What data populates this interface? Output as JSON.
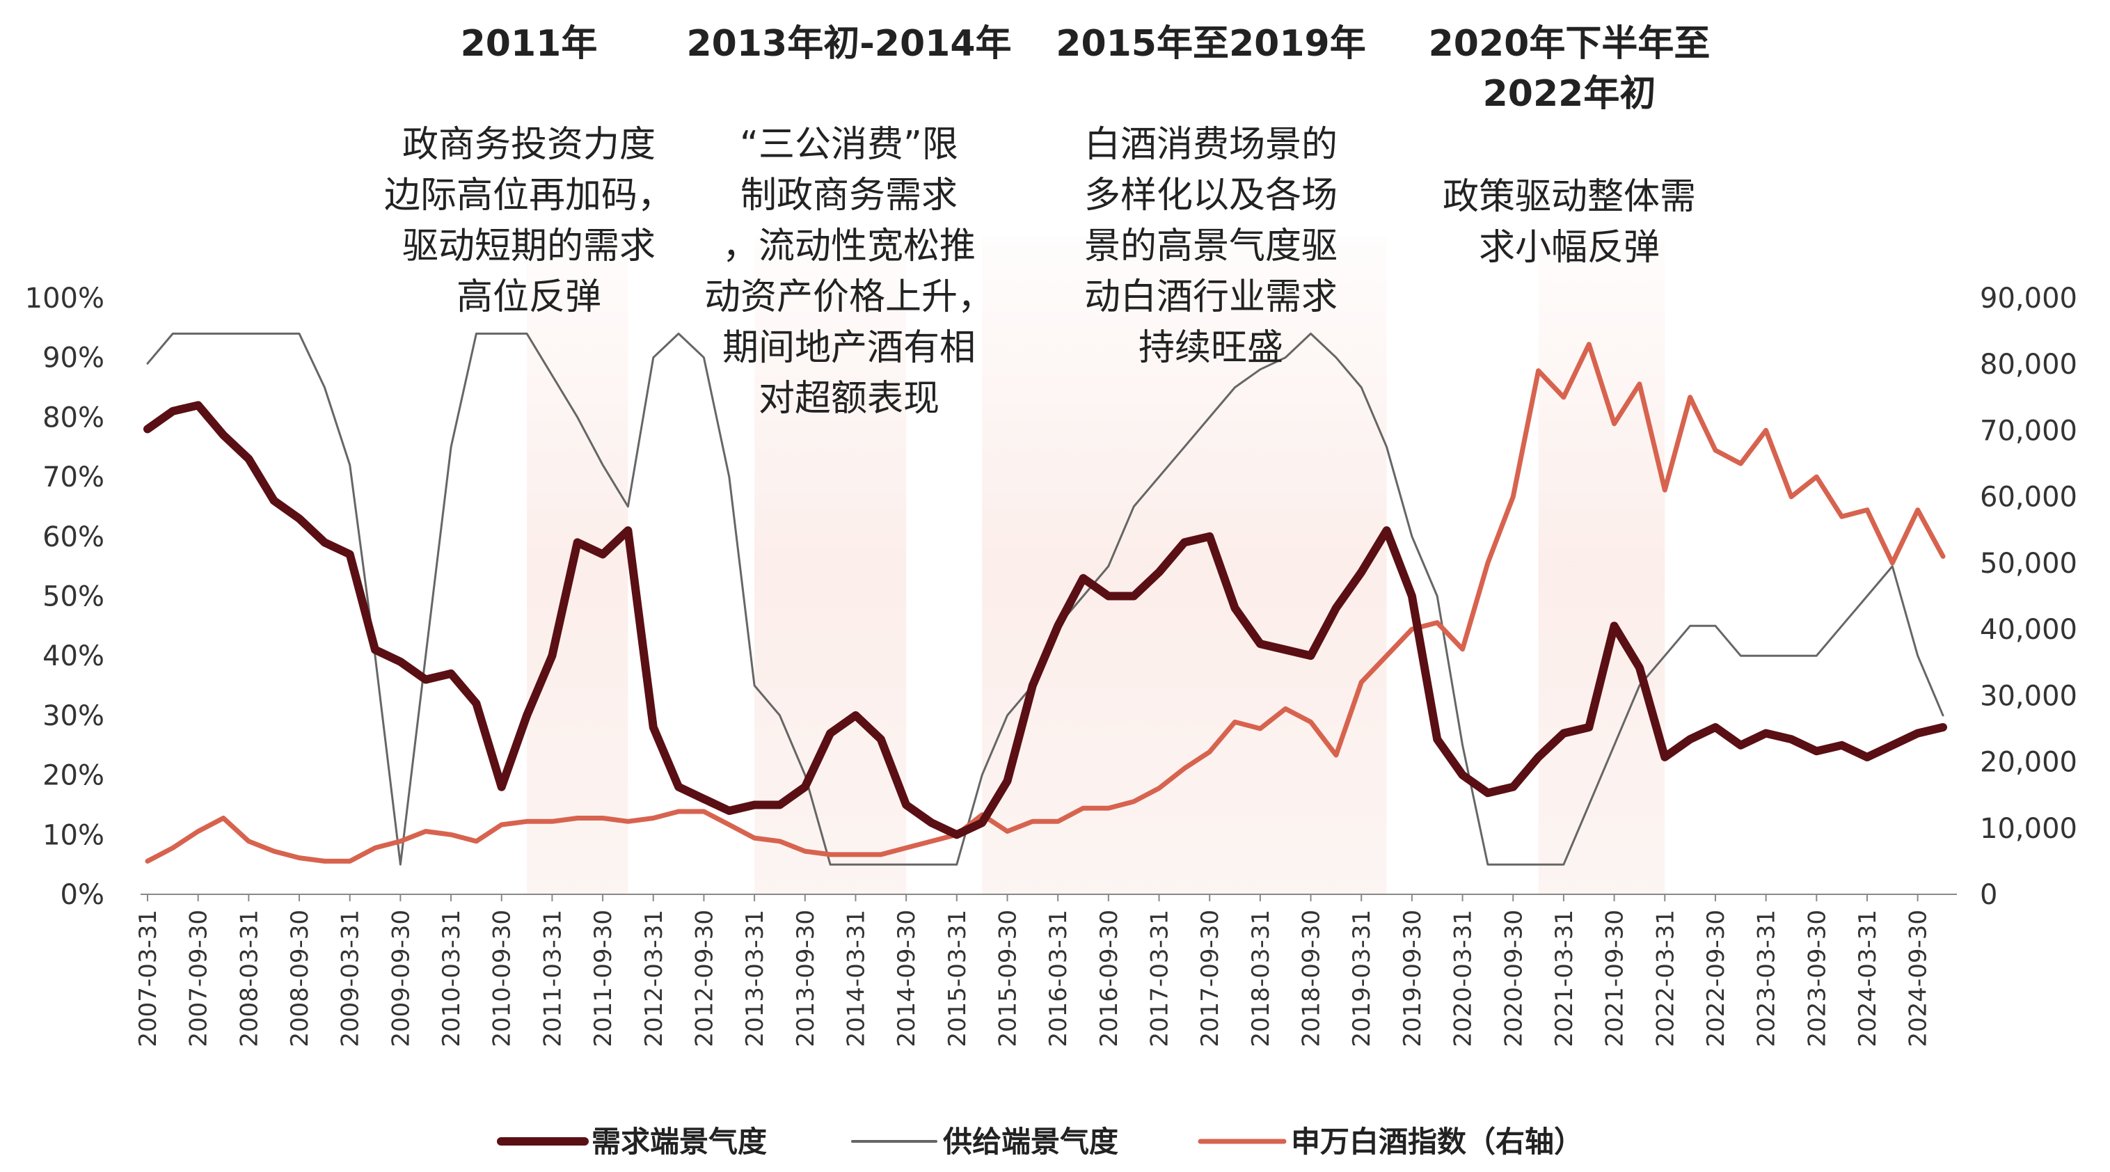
{
  "chart_data": {
    "type": "line",
    "title": "",
    "x": [
      "2007-03-31",
      "2007-06-30",
      "2007-09-30",
      "2007-12-31",
      "2008-03-31",
      "2008-06-30",
      "2008-09-30",
      "2008-12-31",
      "2009-03-31",
      "2009-06-30",
      "2009-09-30",
      "2009-12-31",
      "2010-03-31",
      "2010-06-30",
      "2010-09-30",
      "2010-12-31",
      "2011-03-31",
      "2011-06-30",
      "2011-09-30",
      "2011-12-31",
      "2012-03-31",
      "2012-06-30",
      "2012-09-30",
      "2012-12-31",
      "2013-03-31",
      "2013-06-30",
      "2013-09-30",
      "2013-12-31",
      "2014-03-31",
      "2014-06-30",
      "2014-09-30",
      "2014-12-31",
      "2015-03-31",
      "2015-06-30",
      "2015-09-30",
      "2015-12-31",
      "2016-03-31",
      "2016-06-30",
      "2016-09-30",
      "2016-12-31",
      "2017-03-31",
      "2017-06-30",
      "2017-09-30",
      "2017-12-31",
      "2018-03-31",
      "2018-06-30",
      "2018-09-30",
      "2018-12-31",
      "2019-03-31",
      "2019-06-30",
      "2019-09-30",
      "2019-12-31",
      "2020-03-31",
      "2020-06-30",
      "2020-09-30",
      "2020-12-31",
      "2021-03-31",
      "2021-06-30",
      "2021-09-30",
      "2021-12-31",
      "2022-03-31",
      "2022-06-30",
      "2022-09-30",
      "2022-12-31",
      "2023-03-31",
      "2023-06-30",
      "2023-09-30",
      "2023-12-31",
      "2024-03-31",
      "2024-06-30",
      "2024-09-30",
      "2024-12-31"
    ],
    "x_tick_labels": [
      "2007-03-31",
      "2007-09-30",
      "2008-03-31",
      "2008-09-30",
      "2009-03-31",
      "2009-09-30",
      "2010-03-31",
      "2010-09-30",
      "2011-03-31",
      "2011-09-30",
      "2012-03-31",
      "2012-09-30",
      "2013-03-31",
      "2013-09-30",
      "2014-03-31",
      "2014-09-30",
      "2015-03-31",
      "2015-09-30",
      "2016-03-31",
      "2016-09-30",
      "2017-03-31",
      "2017-09-30",
      "2018-03-31",
      "2018-09-30",
      "2019-03-31",
      "2019-09-30",
      "2020-03-31",
      "2020-09-30",
      "2021-03-31",
      "2021-09-30",
      "2022-03-31",
      "2022-09-30",
      "2023-03-31",
      "2023-09-30",
      "2024-03-31",
      "2024-09-30"
    ],
    "y_left_ticks": [
      "0%",
      "10%",
      "20%",
      "30%",
      "40%",
      "50%",
      "60%",
      "70%",
      "80%",
      "90%",
      "100%"
    ],
    "y_right_ticks": [
      "0",
      "10,000",
      "20,000",
      "30,000",
      "40,000",
      "50,000",
      "60,000",
      "70,000",
      "80,000",
      "90,000"
    ],
    "ylim_left": [
      0,
      100
    ],
    "ylim_right": [
      0,
      90000
    ],
    "shaded_periods": [
      [
        "2010-12-31",
        "2011-12-31"
      ],
      [
        "2013-03-31",
        "2014-09-30"
      ],
      [
        "2015-06-30",
        "2019-06-30"
      ],
      [
        "2020-12-31",
        "2022-03-31"
      ]
    ],
    "series": [
      {
        "name": "需求端景气度",
        "axis": "left",
        "color": "#5a0f14",
        "width": 12,
        "values": [
          78,
          81,
          82,
          77,
          73,
          66,
          63,
          59,
          57,
          41,
          39,
          36,
          37,
          32,
          18,
          30,
          40,
          59,
          57,
          61,
          28,
          18,
          16,
          14,
          15,
          15,
          18,
          27,
          30,
          26,
          15,
          12,
          10,
          12,
          19,
          35,
          45,
          53,
          50,
          50,
          54,
          59,
          60,
          48,
          42,
          41,
          40,
          48,
          54,
          61,
          50,
          26,
          20,
          17,
          18,
          23,
          27,
          28,
          45,
          38,
          23,
          26,
          28,
          25,
          27,
          26,
          24,
          25,
          23,
          25,
          27,
          28
        ]
      },
      {
        "name": "供给端景气度",
        "axis": "left",
        "color": "#666666",
        "width": 3,
        "values": [
          89,
          94,
          94,
          94,
          94,
          94,
          94,
          85,
          72,
          40,
          5,
          40,
          75,
          94,
          94,
          94,
          87,
          80,
          72,
          65,
          90,
          94,
          90,
          70,
          35,
          30,
          20,
          5,
          5,
          5,
          5,
          5,
          5,
          20,
          30,
          35,
          45,
          50,
          55,
          65,
          70,
          75,
          80,
          85,
          88,
          90,
          94,
          90,
          85,
          75,
          60,
          50,
          25,
          5,
          5,
          5,
          5,
          15,
          25,
          35,
          40,
          45,
          45,
          40,
          40,
          40,
          40,
          45,
          50,
          55,
          40,
          30
        ]
      },
      {
        "name": "申万白酒指数（右轴）",
        "axis": "right",
        "color": "#d7634f",
        "width": 7,
        "values": [
          5000,
          7000,
          9500,
          11500,
          8000,
          6500,
          5500,
          5000,
          5000,
          7000,
          8000,
          9500,
          9000,
          8000,
          10500,
          11000,
          11000,
          11500,
          11500,
          11000,
          11500,
          12500,
          12500,
          10500,
          8500,
          8000,
          6500,
          6000,
          6000,
          6000,
          7000,
          8000,
          9000,
          12000,
          9500,
          11000,
          11000,
          13000,
          13000,
          14000,
          16000,
          19000,
          21500,
          26000,
          25000,
          28000,
          26000,
          21000,
          32000,
          36000,
          40000,
          41000,
          37000,
          50000,
          60000,
          79000,
          75000,
          83000,
          71000,
          77000,
          61000,
          75000,
          67000,
          65000,
          70000,
          60000,
          63000,
          57000,
          58000,
          50000,
          58000,
          51000
        ]
      }
    ],
    "annotations": [
      {
        "title_lines": [
          "2011年"
        ],
        "body_lines": [
          "政商务投资力度",
          "边际高位再加码，",
          "驱动短期的需求",
          "高位反弹"
        ]
      },
      {
        "title_lines": [
          "2013年初-2014年"
        ],
        "body_lines": [
          "“三公消费”限",
          "制政商务需求",
          "，流动性宽松推",
          "动资产价格上升，",
          "期间地产酒有相",
          "对超额表现"
        ]
      },
      {
        "title_lines": [
          "2015年至2019年"
        ],
        "body_lines": [
          "白酒消费场景的",
          "多样化以及各场",
          "景的高景气度驱",
          "动白酒行业需求",
          "持续旺盛"
        ]
      },
      {
        "title_lines": [
          "2020年下半年至",
          "2022年初"
        ],
        "body_lines": [
          "政策驱动整体需",
          "求小幅反弹"
        ]
      }
    ],
    "legend_position": "bottom",
    "grid": false
  }
}
